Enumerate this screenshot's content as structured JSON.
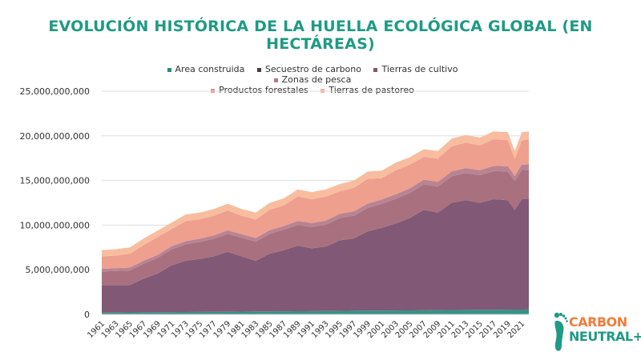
{
  "chart_data": {
    "type": "area",
    "stacked": true,
    "title": "EVOLUCIÓN HISTÓRICA DE LA HUELLA ECOLÓGICA GLOBAL (EN HECTÁREAS)",
    "xlabel": "",
    "ylabel": "",
    "ylim": [
      0,
      25000000000
    ],
    "yticks": [
      0,
      5000000000,
      10000000000,
      15000000000,
      20000000000,
      25000000000
    ],
    "ytick_labels": [
      "0",
      "5,000,000,000",
      "10,000,000,000",
      "15,000,000,000",
      "20,000,000,000",
      "25,000,000,000"
    ],
    "xtick_labels": [
      "1961",
      "1963",
      "1965",
      "1967",
      "1969",
      "1971",
      "1973",
      "1975",
      "1977",
      "1979",
      "1981",
      "1983",
      "1985",
      "1987",
      "1989",
      "1991",
      "1993",
      "1995",
      "1997",
      "1999",
      "2001",
      "2003",
      "2005",
      "2007",
      "2009",
      "2011",
      "2013",
      "2015",
      "2017",
      "2019",
      "2021"
    ],
    "grid": "horizontal",
    "legend_position": "top",
    "x": [
      1961,
      1963,
      1965,
      1967,
      1969,
      1971,
      1973,
      1975,
      1977,
      1979,
      1981,
      1983,
      1985,
      1987,
      1989,
      1991,
      1993,
      1995,
      1997,
      1999,
      2001,
      2003,
      2005,
      2007,
      2009,
      2011,
      2013,
      2015,
      2017,
      2019,
      2020,
      2021,
      2022
    ],
    "series": [
      {
        "name": "Area construida",
        "color": "#2a8c80",
        "values": [
          200000000.0,
          210000000.0,
          220000000.0,
          230000000.0,
          250000000.0,
          260000000.0,
          270000000.0,
          280000000.0,
          290000000.0,
          300000000.0,
          310000000.0,
          330000000.0,
          340000000.0,
          350000000.0,
          360000000.0,
          370000000.0,
          380000000.0,
          390000000.0,
          410000000.0,
          420000000.0,
          430000000.0,
          440000000.0,
          450000000.0,
          460000000.0,
          480000000.0,
          490000000.0,
          500000000.0,
          510000000.0,
          520000000.0,
          530000000.0,
          540000000.0,
          540000000.0,
          550000000.0
        ]
      },
      {
        "name": "Secuestro de carbono",
        "color": "#7a4f6e",
        "values": [
          3100000000.0,
          3090000000.0,
          3080000000.0,
          3770000000.0,
          4350000000.0,
          5240000000.0,
          5730000000.0,
          5920000000.0,
          6210000000.0,
          6700000000.0,
          6190000000.0,
          5670000000.0,
          6460000000.0,
          6850000000.0,
          7340000000.0,
          7030000000.0,
          7220000000.0,
          7910000000.0,
          8090000000.0,
          8880000000.0,
          9270000000.0,
          9760000000.0,
          10350000000.0,
          11240000000.0,
          10920000000.0,
          12010000000.0,
          12300000000.0,
          11990000000.0,
          12380000000.0,
          12270000000.0,
          11160000000.0,
          12360000000.0,
          12350000000.0
        ]
      },
      {
        "name": "Tierras de cultivo",
        "color": "#a46878",
        "values": [
          1500000000.0,
          1560000000.0,
          1620000000.0,
          1680000000.0,
          1740000000.0,
          1800000000.0,
          1850000000.0,
          1910000000.0,
          1970000000.0,
          2030000000.0,
          2090000000.0,
          2150000000.0,
          2210000000.0,
          2270000000.0,
          2330000000.0,
          2390000000.0,
          2440000000.0,
          2500000000.0,
          2560000000.0,
          2620000000.0,
          2680000000.0,
          2740000000.0,
          2800000000.0,
          2860000000.0,
          2920000000.0,
          2980000000.0,
          3030000000.0,
          3090000000.0,
          3150000000.0,
          3210000000.0,
          3240000000.0,
          3270000000.0,
          3300000000.0
        ]
      },
      {
        "name": "Zonas de pesca",
        "color": "#b57d8c",
        "values": [
          300000000.0,
          310000000.0,
          320000000.0,
          330000000.0,
          340000000.0,
          350000000.0,
          360000000.0,
          370000000.0,
          380000000.0,
          390000000.0,
          400000000.0,
          410000000.0,
          420000000.0,
          430000000.0,
          440000000.0,
          450000000.0,
          460000000.0,
          470000000.0,
          480000000.0,
          490000000.0,
          500000000.0,
          510000000.0,
          520000000.0,
          530000000.0,
          540000000.0,
          550000000.0,
          560000000.0,
          570000000.0,
          580000000.0,
          590000000.0,
          590000000.0,
          600000000.0,
          600000000.0
        ]
      },
      {
        "name": "Productos forestales",
        "color": "#ee9a88",
        "values": [
          1400000000.0,
          1420000000.0,
          1550000000.0,
          1770000000.0,
          1990000000.0,
          1920000000.0,
          2250000000.0,
          2170000000.0,
          2200000000.0,
          2220000000.0,
          2040000000.0,
          2070000000.0,
          2290000000.0,
          2310000000.0,
          2740000000.0,
          2660000000.0,
          2690000000.0,
          2520000000.0,
          2640000000.0,
          2770000000.0,
          2390000000.0,
          2710000000.0,
          2640000000.0,
          2560000000.0,
          2580000000.0,
          2810000000.0,
          2840000000.0,
          2760000000.0,
          2990000000.0,
          2910000000.0,
          1880000000.0,
          2730000000.0,
          2800000000.0
        ]
      },
      {
        "name": "Tierras de pastoreo",
        "color": "#f8b99a",
        "values": [
          700000000.0,
          710000000.0,
          710000000.0,
          720000000.0,
          730000000.0,
          730000000.0,
          740000000.0,
          750000000.0,
          750000000.0,
          760000000.0,
          770000000.0,
          770000000.0,
          780000000.0,
          790000000.0,
          790000000.0,
          800000000.0,
          810000000.0,
          810000000.0,
          820000000.0,
          820000000.0,
          830000000.0,
          840000000.0,
          840000000.0,
          850000000.0,
          860000000.0,
          860000000.0,
          870000000.0,
          880000000.0,
          880000000.0,
          890000000.0,
          890000000.0,
          900000000.0,
          900000000.0
        ]
      }
    ],
    "legend_marker_colors": [
      "#2a8c80",
      "#4a3a48",
      "#7a5a6a",
      "#b07890",
      "#e0948a",
      "#f0b0a0"
    ]
  },
  "logo": {
    "line1": "CARBON",
    "line2": "NEUTRAL+",
    "icon": "footprint-icon"
  }
}
